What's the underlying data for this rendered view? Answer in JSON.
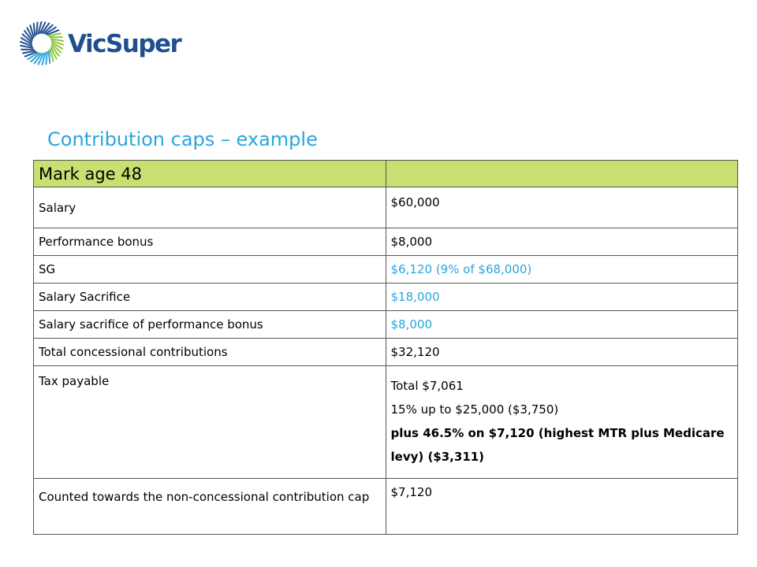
{
  "brand": {
    "name": "VicSuper",
    "colors": {
      "text": "#1f4f8f",
      "ring_blue": "#1f4f8f",
      "ring_green": "#8cc63f",
      "ring_cyan": "#2aa6dc"
    }
  },
  "title": "Contribution caps – example",
  "accent_color": "#2aa6dc",
  "header_bg": "#c9df72",
  "table": {
    "header": {
      "label": "Mark age 48",
      "value": ""
    },
    "rows": [
      {
        "label": "Salary",
        "value": "$60,000"
      },
      {
        "label": "Performance bonus",
        "value": "$8,000"
      },
      {
        "label": "SG",
        "value": "$6,120 (9% of $68,000)"
      },
      {
        "label": "Salary Sacrifice",
        "value": "$18,000"
      },
      {
        "label": "Salary sacrifice of performance bonus",
        "value": "$8,000"
      },
      {
        "label": "Total concessional contributions",
        "value": "$32,120"
      },
      {
        "label": "Tax payable",
        "lines": [
          "Total $7,061",
          "15% up to $25,000 ($3,750)",
          "plus 46.5% on $7,120 (highest MTR plus Medicare levy) ($3,311)"
        ]
      },
      {
        "label": "Counted towards the non-concessional contribution cap",
        "value": "$7,120"
      }
    ]
  }
}
